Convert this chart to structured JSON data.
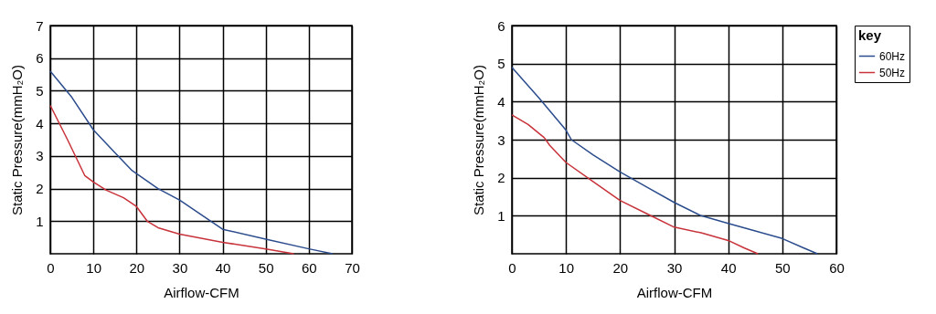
{
  "chart_data": [
    {
      "type": "line",
      "xlabel": "Airflow-CFM",
      "ylabel": "Static Pressure(mmH₂O)",
      "xlim": [
        0,
        70
      ],
      "ylim": [
        0,
        7
      ],
      "xticks": [
        0,
        10,
        20,
        30,
        40,
        50,
        60,
        70
      ],
      "yticks": [
        1,
        2,
        3,
        4,
        5,
        6,
        7
      ],
      "grid": true,
      "legend": false,
      "marker": "none",
      "line_style": "solid",
      "series": [
        {
          "color": "#2b4c8c",
          "x": [
            0,
            5,
            10,
            15,
            19,
            25,
            30,
            35,
            40,
            50,
            60,
            65.5
          ],
          "values": [
            5.6,
            4.8,
            3.8,
            3.1,
            2.55,
            2.0,
            1.65,
            1.2,
            0.75,
            0.45,
            0.15,
            0
          ]
        },
        {
          "color": "#c8323a",
          "x": [
            0,
            4,
            8,
            10,
            13,
            17,
            20,
            22.5,
            25,
            30,
            40,
            50,
            56.5
          ],
          "values": [
            4.55,
            3.5,
            2.4,
            2.2,
            1.95,
            1.72,
            1.45,
            1.0,
            0.8,
            0.6,
            0.35,
            0.15,
            0
          ]
        }
      ]
    },
    {
      "type": "line",
      "xlabel": "Airflow-CFM",
      "ylabel": "Static Pressure(mmH₂O)",
      "xlim": [
        0,
        60
      ],
      "ylim": [
        0,
        6
      ],
      "xticks": [
        0,
        10,
        20,
        30,
        40,
        50,
        60
      ],
      "yticks": [
        1,
        2,
        3,
        4,
        5,
        6
      ],
      "grid": true,
      "legend": "right",
      "legend_title": "key",
      "marker": "none",
      "line_style": "solid",
      "series": [
        {
          "name": "60Hz",
          "color": "#2b4c8c",
          "x": [
            0,
            5,
            10,
            11,
            15,
            20,
            25,
            30,
            35,
            40,
            45,
            50,
            54,
            56.5
          ],
          "values": [
            4.9,
            4.1,
            3.25,
            3.0,
            2.6,
            2.15,
            1.75,
            1.35,
            1.0,
            0.8,
            0.6,
            0.4,
            0.15,
            0
          ]
        },
        {
          "name": "50Hz",
          "color": "#c8323a",
          "x": [
            0,
            3,
            6,
            7,
            10,
            15,
            20,
            25,
            30,
            35,
            40,
            43,
            45.5
          ],
          "values": [
            3.65,
            3.4,
            3.05,
            2.85,
            2.4,
            1.9,
            1.4,
            1.05,
            0.7,
            0.55,
            0.35,
            0.15,
            0
          ]
        }
      ]
    }
  ]
}
